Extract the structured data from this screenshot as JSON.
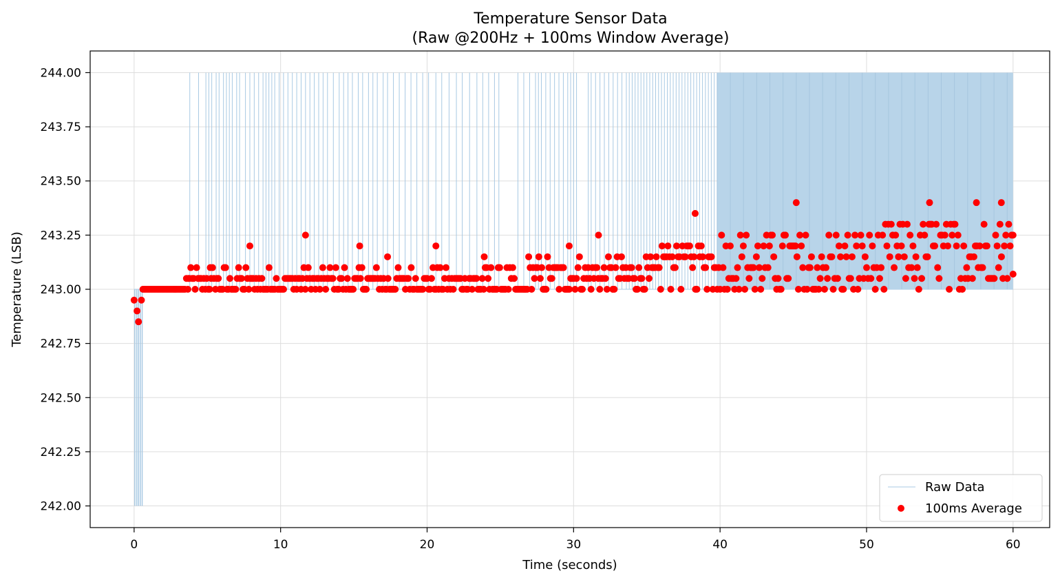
{
  "chart_data": {
    "type": "line",
    "title_line1": "Temperature Sensor Data",
    "title_line2": "(Raw @200Hz + 100ms Window Average)",
    "xlabel": "Time (seconds)",
    "ylabel": "Temperature (LSB)",
    "xlim": [
      -3,
      62.5
    ],
    "ylim": [
      241.9,
      244.1
    ],
    "x_ticks": [
      0,
      10,
      20,
      30,
      40,
      50,
      60
    ],
    "x_tick_labels": [
      "0",
      "10",
      "20",
      "30",
      "40",
      "50",
      "60"
    ],
    "y_ticks": [
      242.0,
      242.25,
      242.5,
      242.75,
      243.0,
      243.25,
      243.5,
      243.75,
      244.0
    ],
    "y_tick_labels": [
      "242.00",
      "242.25",
      "242.50",
      "242.75",
      "243.00",
      "243.25",
      "243.50",
      "243.75",
      "244.00"
    ],
    "grid": true,
    "legend_position": "lower-right",
    "series": [
      {
        "name": "Raw Data",
        "style": "thin-line",
        "color": "#a8c9e3",
        "baseline": 243.0,
        "low_spikes_to": 242.0,
        "low_spike_x": [
          0.05,
          0.18,
          0.3,
          0.42,
          0.55
        ],
        "high_level": 244.0,
        "dense_high_start_x": 39.8,
        "end_x": 60.0,
        "high_spike_x": [
          3.8,
          4.4,
          4.9,
          5.1,
          5.3,
          5.6,
          5.8,
          6.1,
          6.3,
          6.5,
          6.7,
          7.0,
          7.2,
          7.6,
          7.9,
          8.2,
          8.5,
          8.8,
          9.0,
          9.2,
          9.4,
          9.6,
          9.9,
          10.2,
          10.5,
          10.8,
          11.1,
          11.4,
          11.7,
          12.0,
          12.3,
          12.6,
          12.9,
          13.2,
          13.6,
          14.0,
          14.3,
          14.6,
          14.9,
          15.3,
          15.6,
          16.0,
          16.3,
          16.6,
          17.0,
          17.3,
          17.7,
          18.1,
          18.5,
          18.9,
          19.3,
          19.7,
          20.1,
          20.6,
          21.0,
          21.5,
          22.0,
          22.4,
          22.9,
          23.4,
          23.8,
          24.2,
          24.6,
          24.9,
          26.2,
          26.6,
          27.0,
          27.4,
          27.6,
          27.8,
          28.1,
          28.4,
          28.7,
          29.0,
          29.3,
          29.6,
          29.8,
          30.0,
          30.2,
          31.0,
          31.2,
          31.5,
          31.8,
          32.1,
          32.4,
          32.7,
          33.0,
          33.3,
          33.6,
          33.8,
          34.0,
          34.2,
          34.4,
          34.6,
          34.8,
          35.0,
          35.2,
          35.4,
          35.6,
          35.8,
          36.0,
          36.2,
          36.4,
          36.6,
          36.8,
          37.0,
          37.2,
          37.4,
          37.6,
          37.8,
          38.0,
          38.2,
          38.4,
          38.6,
          38.8,
          39.0,
          39.2,
          39.4,
          39.6
        ]
      },
      {
        "name": "100ms Average",
        "style": "scatter",
        "color": "#ff0000",
        "approx_points": 600,
        "profile": [
          {
            "x": 0.0,
            "y": 242.95
          },
          {
            "x": 0.2,
            "y": 242.9
          },
          {
            "x": 0.3,
            "y": 242.85
          },
          {
            "x": 0.5,
            "y": 242.95
          },
          {
            "x": 0.6,
            "y": 243.0
          }
        ],
        "highlights": [
          {
            "x": 3.7,
            "y": 243.05
          },
          {
            "x": 5.2,
            "y": 243.1
          },
          {
            "x": 7.9,
            "y": 243.2
          },
          {
            "x": 11.7,
            "y": 243.25
          },
          {
            "x": 15.4,
            "y": 243.2
          },
          {
            "x": 17.3,
            "y": 243.15
          },
          {
            "x": 20.6,
            "y": 243.2
          },
          {
            "x": 23.9,
            "y": 243.15
          },
          {
            "x": 29.7,
            "y": 243.2
          },
          {
            "x": 31.7,
            "y": 243.25
          },
          {
            "x": 38.3,
            "y": 243.35
          },
          {
            "x": 45.2,
            "y": 243.4
          },
          {
            "x": 54.3,
            "y": 243.4
          },
          {
            "x": 57.5,
            "y": 243.4
          },
          {
            "x": 59.2,
            "y": 243.4
          },
          {
            "x": 60.0,
            "y": 243.07
          }
        ]
      }
    ]
  }
}
